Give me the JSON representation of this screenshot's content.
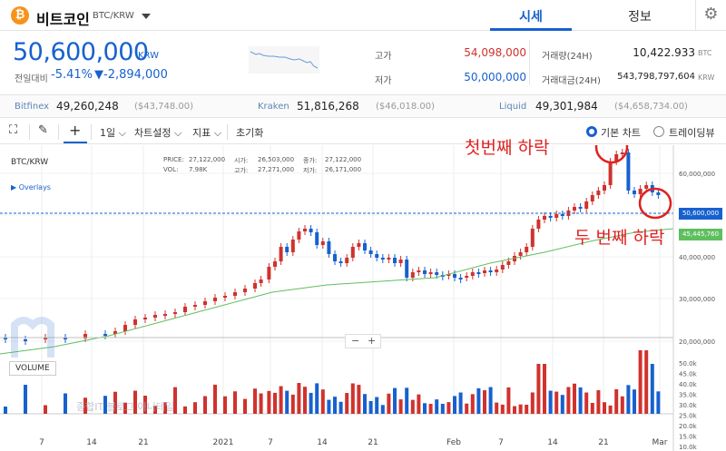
{
  "header": {
    "coin_symbol": "₿",
    "coin_name": "비트코인",
    "pair": "BTC/KRW",
    "tabs": [
      {
        "label": "시세",
        "active": true
      },
      {
        "label": "정보",
        "active": false
      }
    ],
    "settings_icon": "gear-icon"
  },
  "price": {
    "current": "50,600,000",
    "currency": "KRW",
    "change_label": "전일대비",
    "change_pct": "-5.41%",
    "change_amt": "▼-2,894,000"
  },
  "stats": {
    "high_label": "고가",
    "high": "54,098,000",
    "low_label": "저가",
    "low": "50,000,000",
    "volume_label": "거래량(24H)",
    "volume": "10,422.933",
    "volume_unit": "BTC",
    "value_label": "거래대금(24H)",
    "value": "543,798,797,604",
    "value_unit": "KRW"
  },
  "exchanges": [
    {
      "name": "Bitfinex",
      "price": "49,260,248",
      "diff": "($43,748.00)"
    },
    {
      "name": "Kraken",
      "price": "51,816,268",
      "diff": "($46,018.00)"
    },
    {
      "name": "Liquid",
      "price": "49,301,984",
      "diff": "($4,658,734.00)"
    }
  ],
  "toolbar": {
    "expand_icon": "expand-icon",
    "pen_icon": "pencil-icon",
    "crosshair_icon": "crosshair-icon",
    "interval": "1일",
    "chart_settings": "차트설정",
    "indicators": "지표",
    "reset": "초기화",
    "basic_chart": "기본 차트",
    "trading_view": "트레이딩뷰"
  },
  "chart_info": {
    "symbol": "BTC/KRW",
    "overlays": "Overlays",
    "price_label": "PRICE:",
    "price_val": "27,122,000",
    "vol_label": "VOL:",
    "vol_val": "7.98K",
    "open_label": "시가:",
    "open_val": "26,503,000",
    "close_label": "종가:",
    "close_val": "27,122,000",
    "high_label": "고가:",
    "high_val": "27,271,000",
    "low_label": "저가:",
    "low_val": "26,171,000",
    "volume_title": "VOLUME",
    "zoom_out": "−",
    "zoom_in": "+"
  },
  "annotations": {
    "first_drop": "첫번째 하락",
    "second_drop": "두 번째 하락"
  },
  "chart_data": {
    "type": "candlestick",
    "price_axis": {
      "ticks": [
        "60,000,000",
        "50,000,000",
        "40,000,000",
        "30,000,000",
        "20,000,000"
      ],
      "current_label": "50,600,000",
      "ma_label": "45,445,760"
    },
    "volume_axis": {
      "ticks": [
        "50.0k",
        "45.0k",
        "40.0k",
        "35.0k",
        "30.0k",
        "25.0k",
        "20.0k",
        "15.0k",
        "10.0k"
      ]
    },
    "x_ticks": [
      "7",
      "14",
      "21",
      "2021",
      "7",
      "14",
      "21",
      "Feb",
      "7",
      "14",
      "21",
      "Mar"
    ],
    "colors": {
      "up": "#d0322d",
      "down": "#1761cf",
      "ma": "#5fbf5f"
    }
  },
  "watermark": {
    "text": "종합IT 블로그 어니테일"
  }
}
